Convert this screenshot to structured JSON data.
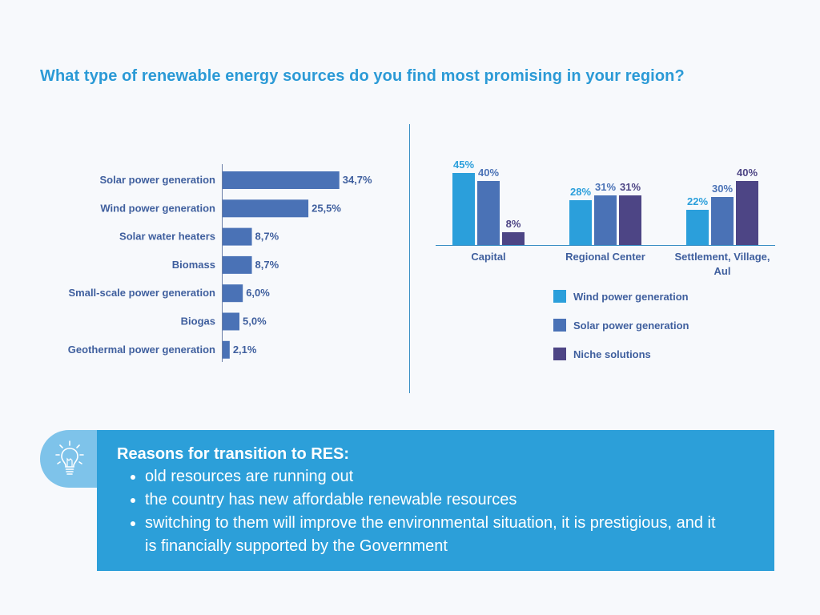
{
  "title": "What type of renewable energy sources do you find most promising in your region?",
  "colors": {
    "wind": "#2b9fdb",
    "solar": "#4a72b6",
    "niche": "#4d4585",
    "hbar": "#4a72b6",
    "title": "#2b9ad6",
    "label": "#3f5f9e"
  },
  "chart_data": [
    {
      "type": "bar",
      "orientation": "horizontal",
      "categories": [
        "Solar power generation",
        "Wind power generation",
        "Solar water heaters",
        "Biomass",
        "Small-scale power generation",
        "Biogas",
        "Geothermal power generation"
      ],
      "values": [
        34.7,
        25.5,
        8.7,
        8.7,
        6.0,
        5.0,
        2.1
      ],
      "value_labels": [
        "34,7%",
        "25,5%",
        "8,7%",
        "8,7%",
        "6,0%",
        "5,0%",
        "2,1%"
      ],
      "xlim": [
        0,
        40
      ]
    },
    {
      "type": "bar",
      "orientation": "vertical",
      "categories": [
        "Capital",
        "Regional Center",
        "Settlement, Village, Aul"
      ],
      "series": [
        {
          "name": "Wind power generation",
          "color_key": "wind",
          "values": [
            45,
            28,
            22
          ],
          "labels": [
            "45%",
            "28%",
            "22%"
          ]
        },
        {
          "name": "Solar power generation",
          "color_key": "solar",
          "values": [
            40,
            31,
            30
          ],
          "labels": [
            "40%",
            "31%",
            "30%"
          ]
        },
        {
          "name": "Niche solutions",
          "color_key": "niche",
          "values": [
            8,
            31,
            40
          ],
          "labels": [
            "8%",
            "31%",
            "40%"
          ]
        }
      ],
      "ylim": [
        0,
        50
      ],
      "legend": "bottom-right"
    }
  ],
  "reasons": {
    "title": "Reasons for transition to RES:",
    "items": [
      "old resources are running out",
      "the country has new affordable renewable resources",
      "switching to them will improve the environmental situation, it is prestigious, and it is financially supported by the Government"
    ],
    "icon": "lightbulb-icon"
  }
}
